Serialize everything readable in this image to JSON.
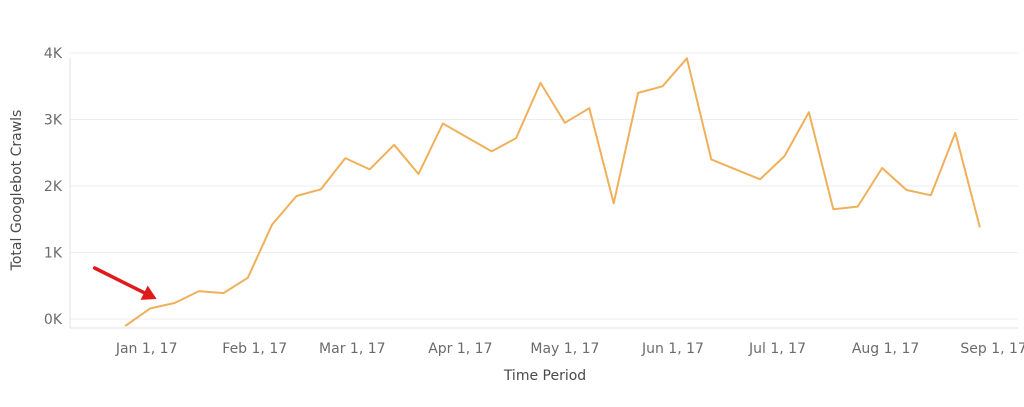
{
  "chart_data": {
    "type": "line",
    "xlabel": "Time Period",
    "ylabel": "Total Googlebot Crawls",
    "ylim": [
      0,
      4000
    ],
    "y_ticks": [
      0,
      1000,
      2000,
      3000,
      4000
    ],
    "y_tick_labels": [
      "0K",
      "1K",
      "2K",
      "3K",
      "4K"
    ],
    "x_ticks": [
      "2017-01-01",
      "2017-02-01",
      "2017-03-01",
      "2017-04-01",
      "2017-05-01",
      "2017-06-01",
      "2017-07-01",
      "2017-08-01",
      "2017-09-01"
    ],
    "x_tick_labels": [
      "Jan 1, 17",
      "Feb 1, 17",
      "Mar 1, 17",
      "Apr 1, 17",
      "May 1, 17",
      "Jun 1, 17",
      "Jul 1, 17",
      "Aug 1, 17",
      "Sep 1, 17"
    ],
    "xlim": [
      "2016-12-10",
      "2017-09-08"
    ],
    "grid": true,
    "line_color": "#f0b05a",
    "annotation": {
      "type": "arrow",
      "color": "#e0191b",
      "points_to": "2017-01-03"
    },
    "series": [
      {
        "x": [
          "2016-12-26",
          "2017-01-02",
          "2017-01-09",
          "2017-01-16",
          "2017-01-23",
          "2017-01-30",
          "2017-02-06",
          "2017-02-13",
          "2017-02-20",
          "2017-02-27",
          "2017-03-06",
          "2017-03-13",
          "2017-03-20",
          "2017-03-27",
          "2017-04-03",
          "2017-04-10",
          "2017-04-17",
          "2017-04-24",
          "2017-05-01",
          "2017-05-08",
          "2017-05-15",
          "2017-05-22",
          "2017-05-29",
          "2017-06-05",
          "2017-06-12",
          "2017-06-19",
          "2017-06-26",
          "2017-07-03",
          "2017-07-10",
          "2017-07-17",
          "2017-07-24",
          "2017-07-31",
          "2017-08-07",
          "2017-08-14",
          "2017-08-21",
          "2017-08-28"
        ],
        "y": [
          -100,
          160,
          240,
          420,
          390,
          620,
          1420,
          1850,
          1950,
          2420,
          2250,
          2620,
          2180,
          2940,
          2730,
          2520,
          2720,
          3550,
          2950,
          3170,
          1740,
          3400,
          3500,
          3920,
          2400,
          2250,
          2100,
          2450,
          3110,
          1650,
          1690,
          2270,
          1940,
          1860,
          2800,
          1390
        ]
      }
    ]
  }
}
